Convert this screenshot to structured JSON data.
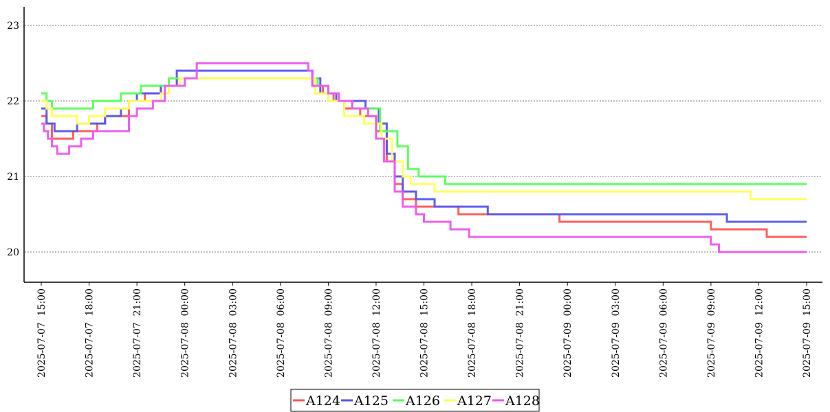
{
  "chart_data": {
    "type": "line",
    "title": "",
    "xlabel": "",
    "ylabel": "",
    "xlim": [
      "2025-07-07 15:00",
      "2025-07-09 15:00"
    ],
    "ylim": [
      19.6,
      23.25
    ],
    "yticks": [
      20,
      21,
      22,
      23
    ],
    "xticks": [
      "2025-07-07 15:00",
      "2025-07-07 18:00",
      "2025-07-07 21:00",
      "2025-07-08 00:00",
      "2025-07-08 03:00",
      "2025-07-08 06:00",
      "2025-07-08 09:00",
      "2025-07-08 12:00",
      "2025-07-08 15:00",
      "2025-07-08 18:00",
      "2025-07-08 21:00",
      "2025-07-09 00:00",
      "2025-07-09 03:00",
      "2025-07-09 06:00",
      "2025-07-09 09:00",
      "2025-07-09 12:00",
      "2025-07-09 15:00"
    ],
    "grid": "horizontal dotted",
    "legend_position": "bottom-center",
    "series": [
      {
        "name": "A124",
        "color": "#ff5555",
        "points": [
          [
            "2025-07-07 15:00",
            21.8
          ],
          [
            "2025-07-07 15:20",
            21.7
          ],
          [
            "2025-07-07 15:40",
            21.5
          ],
          [
            "2025-07-07 17:00",
            21.6
          ],
          [
            "2025-07-07 18:30",
            21.7
          ],
          [
            "2025-07-07 19:00",
            21.8
          ],
          [
            "2025-07-07 20:30",
            22.0
          ],
          [
            "2025-07-07 21:30",
            22.1
          ],
          [
            "2025-07-07 22:30",
            22.2
          ],
          [
            "2025-07-07 23:30",
            22.3
          ],
          [
            "2025-07-08 08:00",
            22.2
          ],
          [
            "2025-07-08 08:40",
            22.1
          ],
          [
            "2025-07-08 09:20",
            22.0
          ],
          [
            "2025-07-08 10:00",
            21.9
          ],
          [
            "2025-07-08 11:00",
            21.8
          ],
          [
            "2025-07-08 12:00",
            21.6
          ],
          [
            "2025-07-08 12:40",
            21.2
          ],
          [
            "2025-07-08 13:10",
            20.9
          ],
          [
            "2025-07-08 13:40",
            20.7
          ],
          [
            "2025-07-08 14:30",
            20.6
          ],
          [
            "2025-07-08 17:10",
            20.5
          ],
          [
            "2025-07-08 23:30",
            20.4
          ],
          [
            "2025-07-09 09:00",
            20.3
          ],
          [
            "2025-07-09 12:30",
            20.2
          ],
          [
            "2025-07-09 15:00",
            20.2
          ]
        ]
      },
      {
        "name": "A125",
        "color": "#5555ee",
        "points": [
          [
            "2025-07-07 15:00",
            21.9
          ],
          [
            "2025-07-07 15:20",
            21.7
          ],
          [
            "2025-07-07 15:50",
            21.6
          ],
          [
            "2025-07-07 17:15",
            21.7
          ],
          [
            "2025-07-07 19:00",
            21.8
          ],
          [
            "2025-07-07 20:00",
            21.9
          ],
          [
            "2025-07-07 20:30",
            22.0
          ],
          [
            "2025-07-07 21:00",
            22.1
          ],
          [
            "2025-07-07 22:30",
            22.2
          ],
          [
            "2025-07-07 23:30",
            22.4
          ],
          [
            "2025-07-08 08:00",
            22.3
          ],
          [
            "2025-07-08 08:30",
            22.1
          ],
          [
            "2025-07-08 09:30",
            22.0
          ],
          [
            "2025-07-08 11:20",
            21.9
          ],
          [
            "2025-07-08 12:10",
            21.7
          ],
          [
            "2025-07-08 12:40",
            21.3
          ],
          [
            "2025-07-08 13:10",
            21.0
          ],
          [
            "2025-07-08 13:40",
            20.8
          ],
          [
            "2025-07-08 14:30",
            20.7
          ],
          [
            "2025-07-08 15:40",
            20.6
          ],
          [
            "2025-07-08 17:30",
            20.6
          ],
          [
            "2025-07-08 19:00",
            20.5
          ],
          [
            "2025-07-09 07:00",
            20.5
          ],
          [
            "2025-07-09 10:00",
            20.4
          ],
          [
            "2025-07-09 15:00",
            20.4
          ]
        ]
      },
      {
        "name": "A126",
        "color": "#55ff55",
        "points": [
          [
            "2025-07-07 15:00",
            22.1
          ],
          [
            "2025-07-07 15:20",
            22.0
          ],
          [
            "2025-07-07 15:40",
            21.9
          ],
          [
            "2025-07-07 18:15",
            22.0
          ],
          [
            "2025-07-07 20:00",
            22.1
          ],
          [
            "2025-07-07 21:15",
            22.2
          ],
          [
            "2025-07-07 23:00",
            22.3
          ],
          [
            "2025-07-08 08:20",
            22.2
          ],
          [
            "2025-07-08 09:00",
            22.0
          ],
          [
            "2025-07-08 10:30",
            21.9
          ],
          [
            "2025-07-08 12:15",
            21.6
          ],
          [
            "2025-07-08 13:20",
            21.4
          ],
          [
            "2025-07-08 14:00",
            21.1
          ],
          [
            "2025-07-08 14:40",
            21.0
          ],
          [
            "2025-07-08 16:20",
            20.9
          ],
          [
            "2025-07-09 15:00",
            20.9
          ]
        ]
      },
      {
        "name": "A127",
        "color": "#ffff55",
        "points": [
          [
            "2025-07-07 15:00",
            22.0
          ],
          [
            "2025-07-07 15:20",
            21.9
          ],
          [
            "2025-07-07 15:40",
            21.8
          ],
          [
            "2025-07-07 17:15",
            21.7
          ],
          [
            "2025-07-07 18:00",
            21.8
          ],
          [
            "2025-07-07 19:00",
            21.9
          ],
          [
            "2025-07-07 20:30",
            22.0
          ],
          [
            "2025-07-07 22:30",
            22.1
          ],
          [
            "2025-07-07 23:00",
            22.2
          ],
          [
            "2025-07-07 23:40",
            22.3
          ],
          [
            "2025-07-08 08:10",
            22.1
          ],
          [
            "2025-07-08 09:00",
            22.0
          ],
          [
            "2025-07-08 10:00",
            21.8
          ],
          [
            "2025-07-08 11:15",
            21.7
          ],
          [
            "2025-07-08 12:20",
            21.5
          ],
          [
            "2025-07-08 13:00",
            21.2
          ],
          [
            "2025-07-08 13:40",
            21.0
          ],
          [
            "2025-07-08 14:10",
            20.9
          ],
          [
            "2025-07-08 15:40",
            20.8
          ],
          [
            "2025-07-09 11:30",
            20.7
          ],
          [
            "2025-07-09 15:00",
            20.7
          ]
        ]
      },
      {
        "name": "A128",
        "color": "#ee55ee",
        "points": [
          [
            "2025-07-07 15:00",
            21.7
          ],
          [
            "2025-07-07 15:10",
            21.6
          ],
          [
            "2025-07-07 15:25",
            21.5
          ],
          [
            "2025-07-07 15:40",
            21.4
          ],
          [
            "2025-07-07 16:00",
            21.3
          ],
          [
            "2025-07-07 16:45",
            21.4
          ],
          [
            "2025-07-07 17:30",
            21.5
          ],
          [
            "2025-07-07 18:15",
            21.6
          ],
          [
            "2025-07-07 20:30",
            21.8
          ],
          [
            "2025-07-07 21:00",
            21.9
          ],
          [
            "2025-07-07 22:00",
            22.0
          ],
          [
            "2025-07-07 22:45",
            22.2
          ],
          [
            "2025-07-08 00:00",
            22.3
          ],
          [
            "2025-07-08 00:45",
            22.5
          ],
          [
            "2025-07-08 07:45",
            22.4
          ],
          [
            "2025-07-08 08:00",
            22.2
          ],
          [
            "2025-07-08 09:00",
            22.1
          ],
          [
            "2025-07-08 09:40",
            22.0
          ],
          [
            "2025-07-08 10:30",
            21.9
          ],
          [
            "2025-07-08 11:30",
            21.8
          ],
          [
            "2025-07-08 12:00",
            21.5
          ],
          [
            "2025-07-08 12:30",
            21.2
          ],
          [
            "2025-07-08 13:10",
            20.8
          ],
          [
            "2025-07-08 13:40",
            20.6
          ],
          [
            "2025-07-08 14:30",
            20.5
          ],
          [
            "2025-07-08 15:00",
            20.4
          ],
          [
            "2025-07-08 16:40",
            20.3
          ],
          [
            "2025-07-08 17:50",
            20.2
          ],
          [
            "2025-07-09 09:00",
            20.1
          ],
          [
            "2025-07-09 09:30",
            20.0
          ],
          [
            "2025-07-09 15:00",
            20.0
          ]
        ]
      }
    ]
  }
}
